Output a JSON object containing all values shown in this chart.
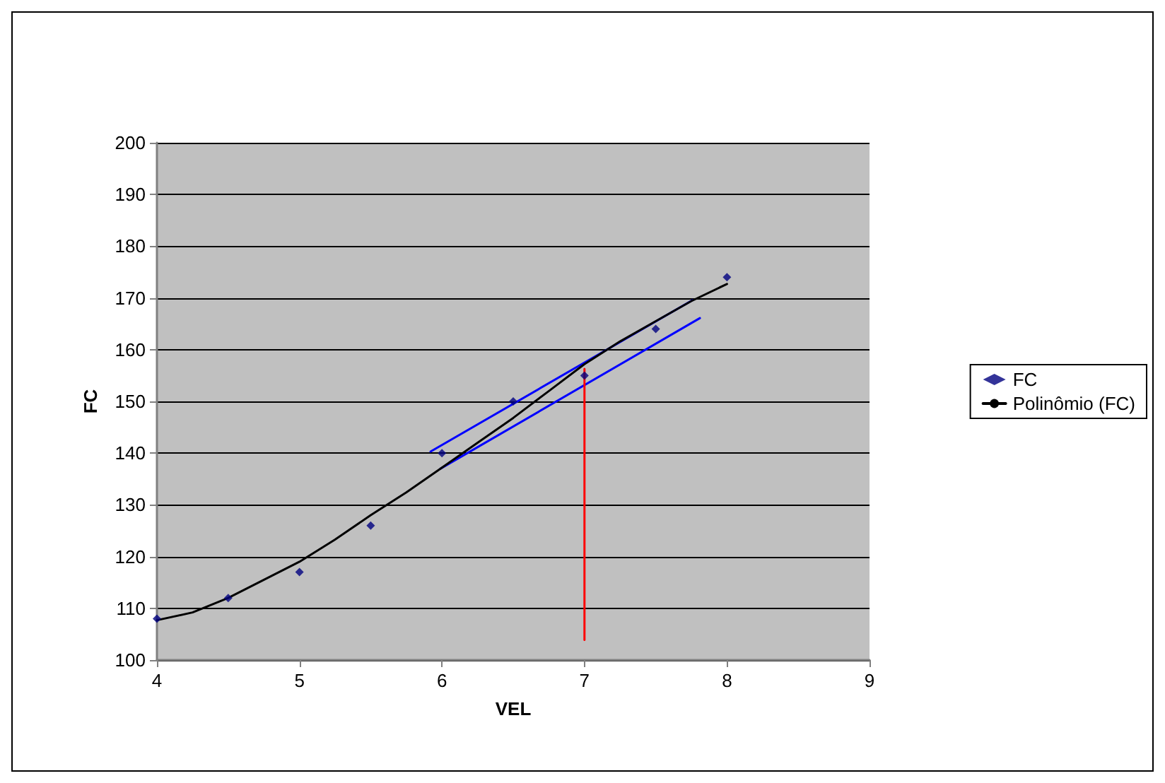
{
  "chart_data": {
    "type": "scatter",
    "xlabel": "VEL",
    "ylabel": "FC",
    "xlim": [
      4,
      9
    ],
    "xticks": [
      4,
      5,
      6,
      7,
      8,
      9
    ],
    "ylim": [
      100,
      200
    ],
    "yticks": [
      100,
      110,
      120,
      130,
      140,
      150,
      160,
      170,
      180,
      190,
      200
    ],
    "grid": "y",
    "legend": "right",
    "series": [
      {
        "name": "FC",
        "type": "scatter",
        "marker": "diamond",
        "color": "#000080",
        "x": [
          4,
          4.5,
          5,
          5.5,
          6,
          6.5,
          7,
          7.5,
          8
        ],
        "values": [
          108,
          112,
          117,
          126,
          140,
          150,
          155,
          164,
          174
        ]
      },
      {
        "name": "Polinômio (FC)",
        "type": "line",
        "marker": "none",
        "line_style": "solid",
        "color": "#000000",
        "x": [
          4,
          4.25,
          4.5,
          5,
          5.25,
          5.5,
          5.75,
          6,
          6.25,
          6.5,
          6.75,
          7,
          7.25,
          7.5,
          7.75,
          8
        ],
        "values": [
          107.7,
          109.2,
          112,
          119,
          123.3,
          128,
          132.4,
          137.2,
          142,
          146.8,
          152,
          157.2,
          161.6,
          165.5,
          169.4,
          172.7
        ]
      },
      {
        "type": "line",
        "marker": "none",
        "line_style": "solid",
        "color": "#0000ff",
        "x": [
          5.92,
          7.76
        ],
        "values": [
          140.3,
          169.6
        ]
      },
      {
        "type": "line",
        "marker": "none",
        "line_style": "solid",
        "color": "#0000ff",
        "x": [
          5.99,
          7.81
        ],
        "values": [
          137,
          166.1
        ]
      },
      {
        "type": "line",
        "marker": "none",
        "line_style": "solid",
        "color": "#ff0000",
        "x": [
          7,
          7
        ],
        "values": [
          103.9,
          156.3
        ]
      }
    ]
  }
}
